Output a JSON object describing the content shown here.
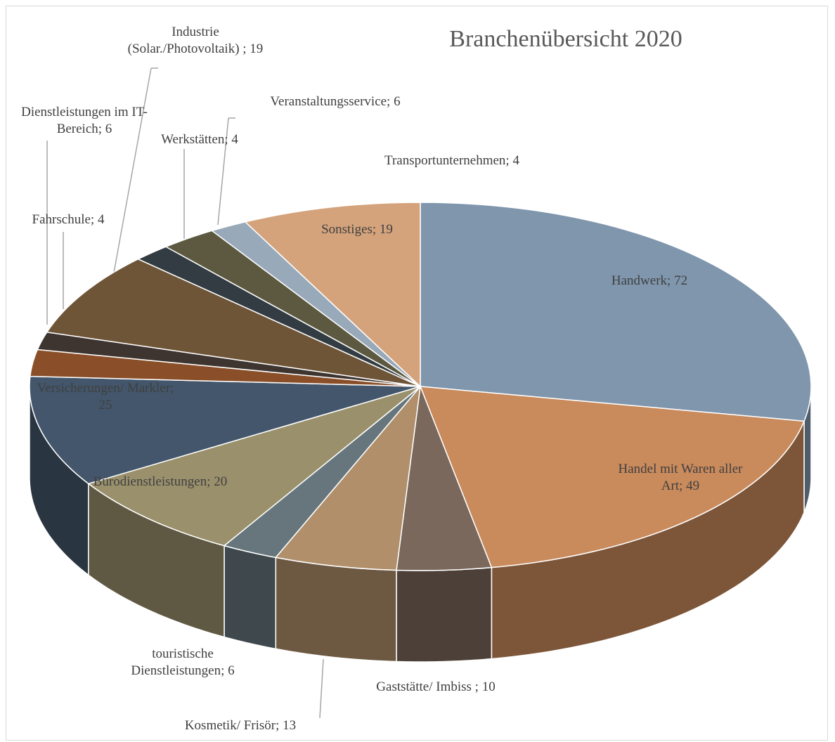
{
  "chart_data": {
    "type": "pie3d",
    "title": "Branchenübersicht 2020",
    "values": [
      72,
      49,
      10,
      13,
      6,
      20,
      25,
      6,
      4,
      19,
      4,
      6,
      4,
      19
    ],
    "value_labels": [
      "Handwerk; 72",
      "Handel mit Waren aller Art; 49",
      "Gaststätte/ Imbiss ; 10",
      "Kosmetik/ Frisör; 13",
      "touristische Dienstleistungen; 6",
      "Bürodienstleistungen; 20",
      "Versicherungen/ Markler; 25",
      "Dienstleistungen im IT-Bereich; 6",
      "Fahrschule; 4",
      "Industrie (Solar./Photovoltaik) ; 19",
      "Werkstätten; 4",
      "Veranstaltungsservice; 6",
      "Transportunternehmen; 4",
      "Sonstiges; 19"
    ],
    "colors": [
      "#7f96ad",
      "#c98a5c",
      "#7a685c",
      "#b08f6a",
      "#66767c",
      "#9a906c",
      "#43566b",
      "#8a4f28",
      "#3f3530",
      "#6f5538",
      "#323c42",
      "#5c5940",
      "#98a9b9",
      "#d4a37c"
    ]
  }
}
